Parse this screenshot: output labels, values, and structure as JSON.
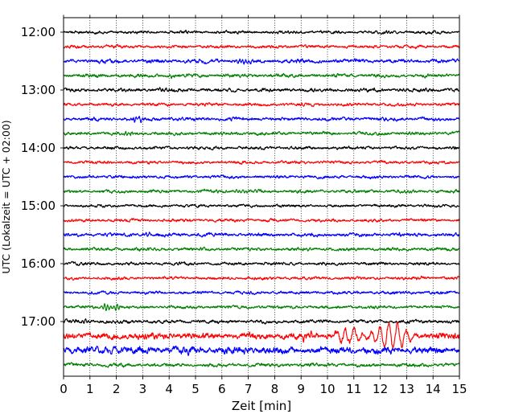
{
  "chart_data": {
    "type": "line",
    "chart_kind": "helicorder (seismogram drum plot)",
    "title": "",
    "xlabel": "Zeit  [min]",
    "ylabel": "UTC (Lokalzeit = UTC + 02:00)",
    "xlim": [
      0,
      15
    ],
    "x_ticks": [
      0,
      1,
      2,
      3,
      4,
      5,
      6,
      7,
      8,
      9,
      10,
      11,
      12,
      13,
      14,
      15
    ],
    "x_grid": true,
    "y_ticks": [
      "12:00",
      "13:00",
      "14:00",
      "15:00",
      "16:00",
      "17:00"
    ],
    "minutes_per_trace": 15,
    "trace_colors": [
      "#000000",
      "#ff0000",
      "#0000ff",
      "#008000"
    ],
    "traces": [
      {
        "start": "12:00",
        "color": "#000000",
        "amplitude": 0.12,
        "events": []
      },
      {
        "start": "12:15",
        "color": "#ff0000",
        "amplitude": 0.12,
        "events": []
      },
      {
        "start": "12:30",
        "color": "#0000ff",
        "amplitude": 0.15,
        "events": [
          {
            "start_min": 6.4,
            "end_min": 7.4,
            "peak": 0.3
          }
        ]
      },
      {
        "start": "12:45",
        "color": "#008000",
        "amplitude": 0.14,
        "events": [
          {
            "start_min": 4.0,
            "end_min": 4.3,
            "peak": 0.35
          }
        ]
      },
      {
        "start": "13:00",
        "color": "#000000",
        "amplitude": 0.14,
        "events": [
          {
            "start_min": 3.5,
            "end_min": 4.2,
            "peak": 0.3
          }
        ]
      },
      {
        "start": "13:15",
        "color": "#ff0000",
        "amplitude": 0.12,
        "events": []
      },
      {
        "start": "13:30",
        "color": "#0000ff",
        "amplitude": 0.14,
        "events": [
          {
            "start_min": 2.6,
            "end_min": 3.0,
            "peak": 0.45
          }
        ]
      },
      {
        "start": "13:45",
        "color": "#008000",
        "amplitude": 0.13,
        "events": [
          {
            "start_min": 2.2,
            "end_min": 2.7,
            "peak": 0.3
          }
        ]
      },
      {
        "start": "14:00",
        "color": "#000000",
        "amplitude": 0.12,
        "events": []
      },
      {
        "start": "14:15",
        "color": "#ff0000",
        "amplitude": 0.12,
        "events": []
      },
      {
        "start": "14:30",
        "color": "#0000ff",
        "amplitude": 0.12,
        "events": []
      },
      {
        "start": "14:45",
        "color": "#008000",
        "amplitude": 0.13,
        "events": [
          {
            "start_min": 6.4,
            "end_min": 7.0,
            "peak": 0.3
          }
        ]
      },
      {
        "start": "15:00",
        "color": "#000000",
        "amplitude": 0.11,
        "events": []
      },
      {
        "start": "15:15",
        "color": "#ff0000",
        "amplitude": 0.12,
        "events": []
      },
      {
        "start": "15:30",
        "color": "#0000ff",
        "amplitude": 0.14,
        "events": [
          {
            "start_min": 3.1,
            "end_min": 3.3,
            "peak": 0.4
          },
          {
            "start_min": 12.6,
            "end_min": 12.8,
            "peak": 0.35
          }
        ]
      },
      {
        "start": "15:45",
        "color": "#008000",
        "amplitude": 0.13,
        "events": []
      },
      {
        "start": "16:00",
        "color": "#000000",
        "amplitude": 0.12,
        "events": []
      },
      {
        "start": "16:15",
        "color": "#ff0000",
        "amplitude": 0.12,
        "events": [
          {
            "start_min": 13.3,
            "end_min": 13.6,
            "peak": 0.35
          }
        ]
      },
      {
        "start": "16:30",
        "color": "#0000ff",
        "amplitude": 0.12,
        "events": []
      },
      {
        "start": "16:45",
        "color": "#008000",
        "amplitude": 0.12,
        "events": [
          {
            "start_min": 1.4,
            "end_min": 2.2,
            "peak": 0.7
          }
        ]
      },
      {
        "start": "17:00",
        "color": "#000000",
        "amplitude": 0.14,
        "events": [
          {
            "start_min": 0.2,
            "end_min": 1.0,
            "peak": 0.3
          }
        ]
      },
      {
        "start": "17:15",
        "color": "#ff0000",
        "amplitude": 0.25,
        "events": [
          {
            "start_min": 9.0,
            "end_min": 9.5,
            "peak": 0.75
          },
          {
            "start_min": 10.0,
            "end_min": 13.5,
            "peak": 2.0
          }
        ]
      },
      {
        "start": "17:30",
        "color": "#0000ff",
        "amplitude": 0.28,
        "events": [
          {
            "start_min": 0.2,
            "end_min": 6.5,
            "peak": 0.45
          }
        ]
      },
      {
        "start": "17:45",
        "color": "#008000",
        "amplitude": 0.14,
        "events": []
      }
    ]
  }
}
